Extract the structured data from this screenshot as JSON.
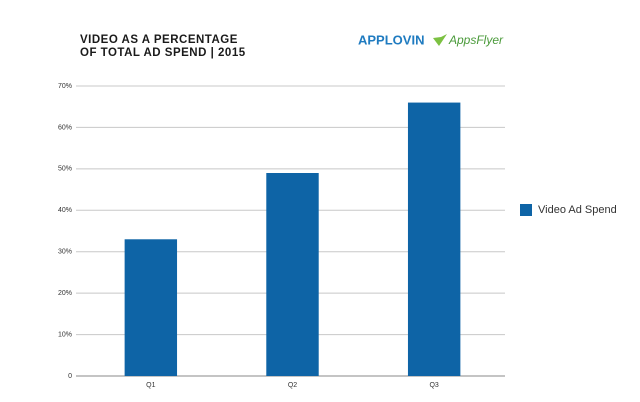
{
  "chart_data": {
    "type": "bar",
    "title": [
      "VIDEO AS A PERCENTAGE",
      "OF TOTAL AD SPEND | 2015"
    ],
    "brands": [
      "APPLOVIN",
      "AppsFlyer"
    ],
    "categories": [
      "Q1",
      "Q2",
      "Q3"
    ],
    "series": [
      {
        "name": "Video Ad Spend",
        "color": "#0e64a6",
        "values": [
          33,
          49,
          66
        ]
      }
    ],
    "ylim": [
      0,
      70
    ],
    "yticks": [
      0,
      {
        "value": 10,
        "label": "10%"
      },
      {
        "value": 20,
        "label": "20%"
      },
      {
        "value": 30,
        "label": "30%"
      },
      {
        "value": 40,
        "label": "40%"
      },
      {
        "value": 50,
        "label": "50%"
      },
      {
        "value": 60,
        "label": "60%"
      },
      {
        "value": 70,
        "label": "70%"
      }
    ],
    "grid": true,
    "legend": "right"
  }
}
